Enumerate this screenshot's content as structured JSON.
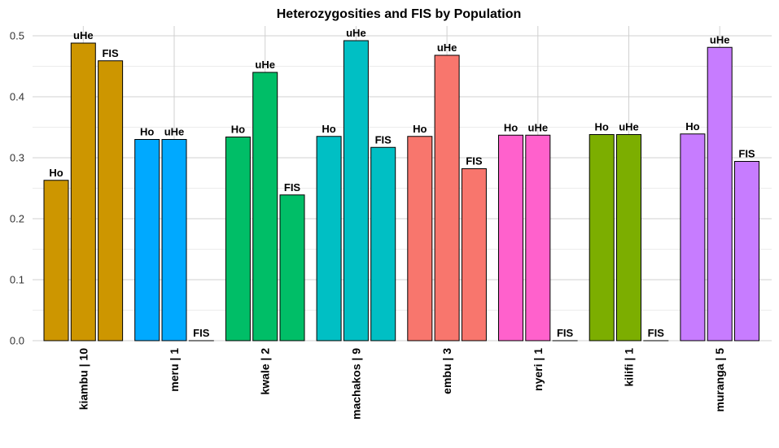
{
  "chart_data": {
    "type": "bar",
    "title": "Heterozygosities and FIS by Population",
    "xlabel": "",
    "ylabel": "",
    "ylim": [
      0,
      0.52
    ],
    "yticks": [
      "0.0",
      "0.1",
      "0.2",
      "0.3",
      "0.4",
      "0.5"
    ],
    "grid": true,
    "legend": "none",
    "categories": [
      "kiambu | 10",
      "meru | 1",
      "kwale | 2",
      "machakos | 9",
      "embu | 3",
      "nyeri | 1",
      "kilifi | 1",
      "muranga | 5"
    ],
    "colors": [
      "#CD9600",
      "#00A9FF",
      "#00BE67",
      "#00BFC4",
      "#F8766D",
      "#FF61CC",
      "#7CAE00",
      "#C77CFF"
    ],
    "series_labels": [
      "Ho",
      "uHe",
      "FIS"
    ],
    "values": [
      [
        0.263,
        0.488,
        0.459
      ],
      [
        0.33,
        0.33,
        0.0
      ],
      [
        0.334,
        0.44,
        0.239
      ],
      [
        0.335,
        0.492,
        0.317
      ],
      [
        0.335,
        0.468,
        0.282
      ],
      [
        0.337,
        0.337,
        0.0
      ],
      [
        0.338,
        0.338,
        0.0
      ],
      [
        0.339,
        0.481,
        0.294
      ]
    ]
  }
}
